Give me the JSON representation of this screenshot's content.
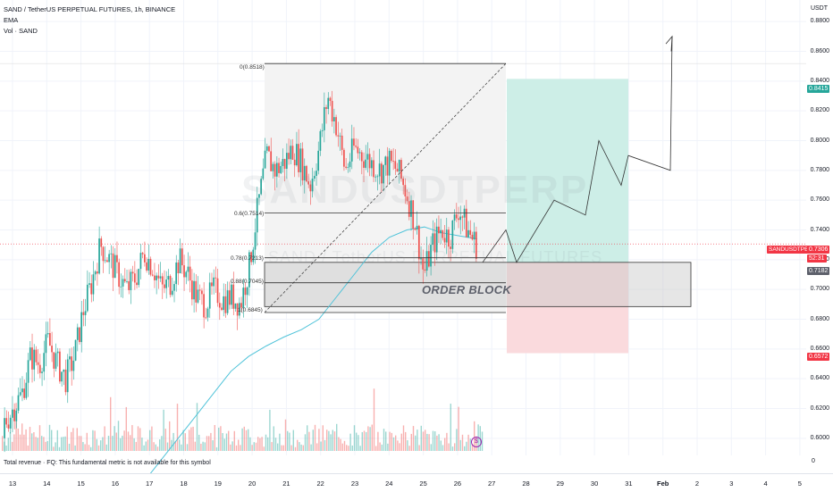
{
  "header": {
    "symbol_line": "SAND / TetherUS PERPETUAL FUTURES, 1h, BINANCE",
    "indicator_ema": "EMA",
    "indicator_vol": "Vol · SAND",
    "currency": "USDT"
  },
  "watermark": {
    "ticker": "SANDUSDTPERP",
    "desc": "SAND / TetherUS PERPETUAL FUTURES"
  },
  "price_axis": {
    "ticks": [
      "0.8800",
      "0.8600",
      "0.8400",
      "0.8200",
      "0.8000",
      "0.7800",
      "0.7600",
      "0.7400",
      "0.7200",
      "0.7000",
      "0.6800",
      "0.6600",
      "0.6400",
      "0.6200",
      "0.6000"
    ],
    "volume_zero": "0",
    "target_tag": "0.8415",
    "stop_tag": "0.6572",
    "symbol_tag": "SANDUSDTPERP",
    "current_price": "0.7306",
    "countdown": "52:31",
    "entry_tag": "0.7182"
  },
  "time_axis": {
    "labels": [
      "13",
      "14",
      "15",
      "16",
      "17",
      "18",
      "19",
      "20",
      "21",
      "22",
      "23",
      "24",
      "25",
      "26",
      "27",
      "28",
      "29",
      "30",
      "31",
      "Feb",
      "2",
      "3",
      "4",
      "5"
    ]
  },
  "fib": {
    "level_0": "0(0.8518)",
    "level_06": "0.6(0.7514)",
    "level_078": "0.78(0.7213)",
    "level_088": "0.88(0.7045)",
    "level_1": "1(0.6845)"
  },
  "annotations": {
    "order_block": "ORDER BLOCK"
  },
  "footer": {
    "note": "Total revenue · FQ: This fundamental metric is not available for this symbol"
  },
  "colors": {
    "up": "#26a69a",
    "down": "#ef5350",
    "ema": "#4fc3d9",
    "target_zone": "#cdeee7",
    "stop_zone": "#fadadd",
    "price_tag": "#f23645"
  },
  "chart_data": {
    "type": "candlestick",
    "ylim": [
      0.59,
      0.89
    ],
    "x_ticks": [
      "13",
      "14",
      "15",
      "16",
      "17",
      "18",
      "19",
      "20",
      "21",
      "22",
      "23",
      "24",
      "25",
      "26",
      "27",
      "28",
      "29",
      "30",
      "31",
      "Feb",
      "2",
      "3",
      "4",
      "5"
    ],
    "fib_levels": [
      0.8518,
      0.7514,
      0.7213,
      0.7045,
      0.6845
    ],
    "trade": {
      "entry": 0.7182,
      "target": 0.8415,
      "stop": 0.6572,
      "current": 0.7306
    },
    "price_path": [
      [
        0.6,
        0.612,
        0.598,
        0.61
      ],
      [
        0.61,
        0.625,
        0.605,
        0.62
      ],
      [
        0.62,
        0.635,
        0.615,
        0.63
      ],
      [
        0.63,
        0.66,
        0.628,
        0.655
      ],
      [
        0.655,
        0.672,
        0.645,
        0.65
      ],
      [
        0.65,
        0.67,
        0.64,
        0.665
      ],
      [
        0.665,
        0.668,
        0.645,
        0.65
      ],
      [
        0.65,
        0.655,
        0.632,
        0.64
      ],
      [
        0.64,
        0.66,
        0.636,
        0.655
      ],
      [
        0.655,
        0.69,
        0.65,
        0.685
      ],
      [
        0.685,
        0.71,
        0.675,
        0.705
      ],
      [
        0.705,
        0.74,
        0.7,
        0.73
      ],
      [
        0.73,
        0.745,
        0.71,
        0.72
      ],
      [
        0.72,
        0.73,
        0.7,
        0.71
      ],
      [
        0.71,
        0.72,
        0.69,
        0.7
      ],
      [
        0.7,
        0.715,
        0.69,
        0.708
      ],
      [
        0.708,
        0.73,
        0.7,
        0.725
      ],
      [
        0.725,
        0.74,
        0.71,
        0.715
      ],
      [
        0.715,
        0.72,
        0.695,
        0.7
      ],
      [
        0.7,
        0.71,
        0.69,
        0.705
      ],
      [
        0.705,
        0.725,
        0.7,
        0.72
      ],
      [
        0.72,
        0.73,
        0.705,
        0.71
      ],
      [
        0.71,
        0.715,
        0.69,
        0.695
      ],
      [
        0.695,
        0.7,
        0.68,
        0.69
      ],
      [
        0.69,
        0.705,
        0.685,
        0.7
      ],
      [
        0.7,
        0.71,
        0.69,
        0.693
      ],
      [
        0.693,
        0.7,
        0.685,
        0.695
      ],
      [
        0.695,
        0.7,
        0.685,
        0.69
      ],
      [
        0.69,
        0.72,
        0.688,
        0.715
      ],
      [
        0.715,
        0.76,
        0.71,
        0.755
      ],
      [
        0.755,
        0.8,
        0.75,
        0.79
      ],
      [
        0.79,
        0.81,
        0.775,
        0.78
      ],
      [
        0.78,
        0.79,
        0.765,
        0.785
      ],
      [
        0.785,
        0.8,
        0.775,
        0.795
      ],
      [
        0.795,
        0.81,
        0.78,
        0.785
      ],
      [
        0.785,
        0.79,
        0.76,
        0.77
      ],
      [
        0.77,
        0.8,
        0.765,
        0.795
      ],
      [
        0.795,
        0.85,
        0.79,
        0.83
      ],
      [
        0.83,
        0.84,
        0.8,
        0.81
      ],
      [
        0.81,
        0.82,
        0.77,
        0.78
      ],
      [
        0.78,
        0.8,
        0.765,
        0.795
      ],
      [
        0.795,
        0.81,
        0.78,
        0.79
      ],
      [
        0.79,
        0.8,
        0.775,
        0.785
      ],
      [
        0.785,
        0.795,
        0.77,
        0.78
      ],
      [
        0.78,
        0.79,
        0.77,
        0.785
      ],
      [
        0.785,
        0.79,
        0.775,
        0.78
      ],
      [
        0.78,
        0.785,
        0.76,
        0.765
      ],
      [
        0.765,
        0.77,
        0.74,
        0.745
      ],
      [
        0.745,
        0.75,
        0.705,
        0.71
      ],
      [
        0.71,
        0.735,
        0.705,
        0.73
      ],
      [
        0.73,
        0.75,
        0.72,
        0.74
      ],
      [
        0.74,
        0.745,
        0.72,
        0.735
      ],
      [
        0.735,
        0.77,
        0.73,
        0.755
      ],
      [
        0.755,
        0.76,
        0.735,
        0.74
      ],
      [
        0.74,
        0.745,
        0.72,
        0.73
      ]
    ],
    "ema_path": [
      0.57,
      0.585,
      0.6,
      0.615,
      0.63,
      0.645,
      0.655,
      0.662,
      0.668,
      0.673,
      0.68,
      0.695,
      0.71,
      0.725,
      0.735,
      0.74,
      0.742,
      0.738,
      0.736,
      0.734
    ],
    "projection": [
      0.7182,
      0.74,
      0.7182,
      0.76,
      0.75,
      0.8,
      0.77,
      0.79,
      0.78,
      0.87
    ]
  }
}
